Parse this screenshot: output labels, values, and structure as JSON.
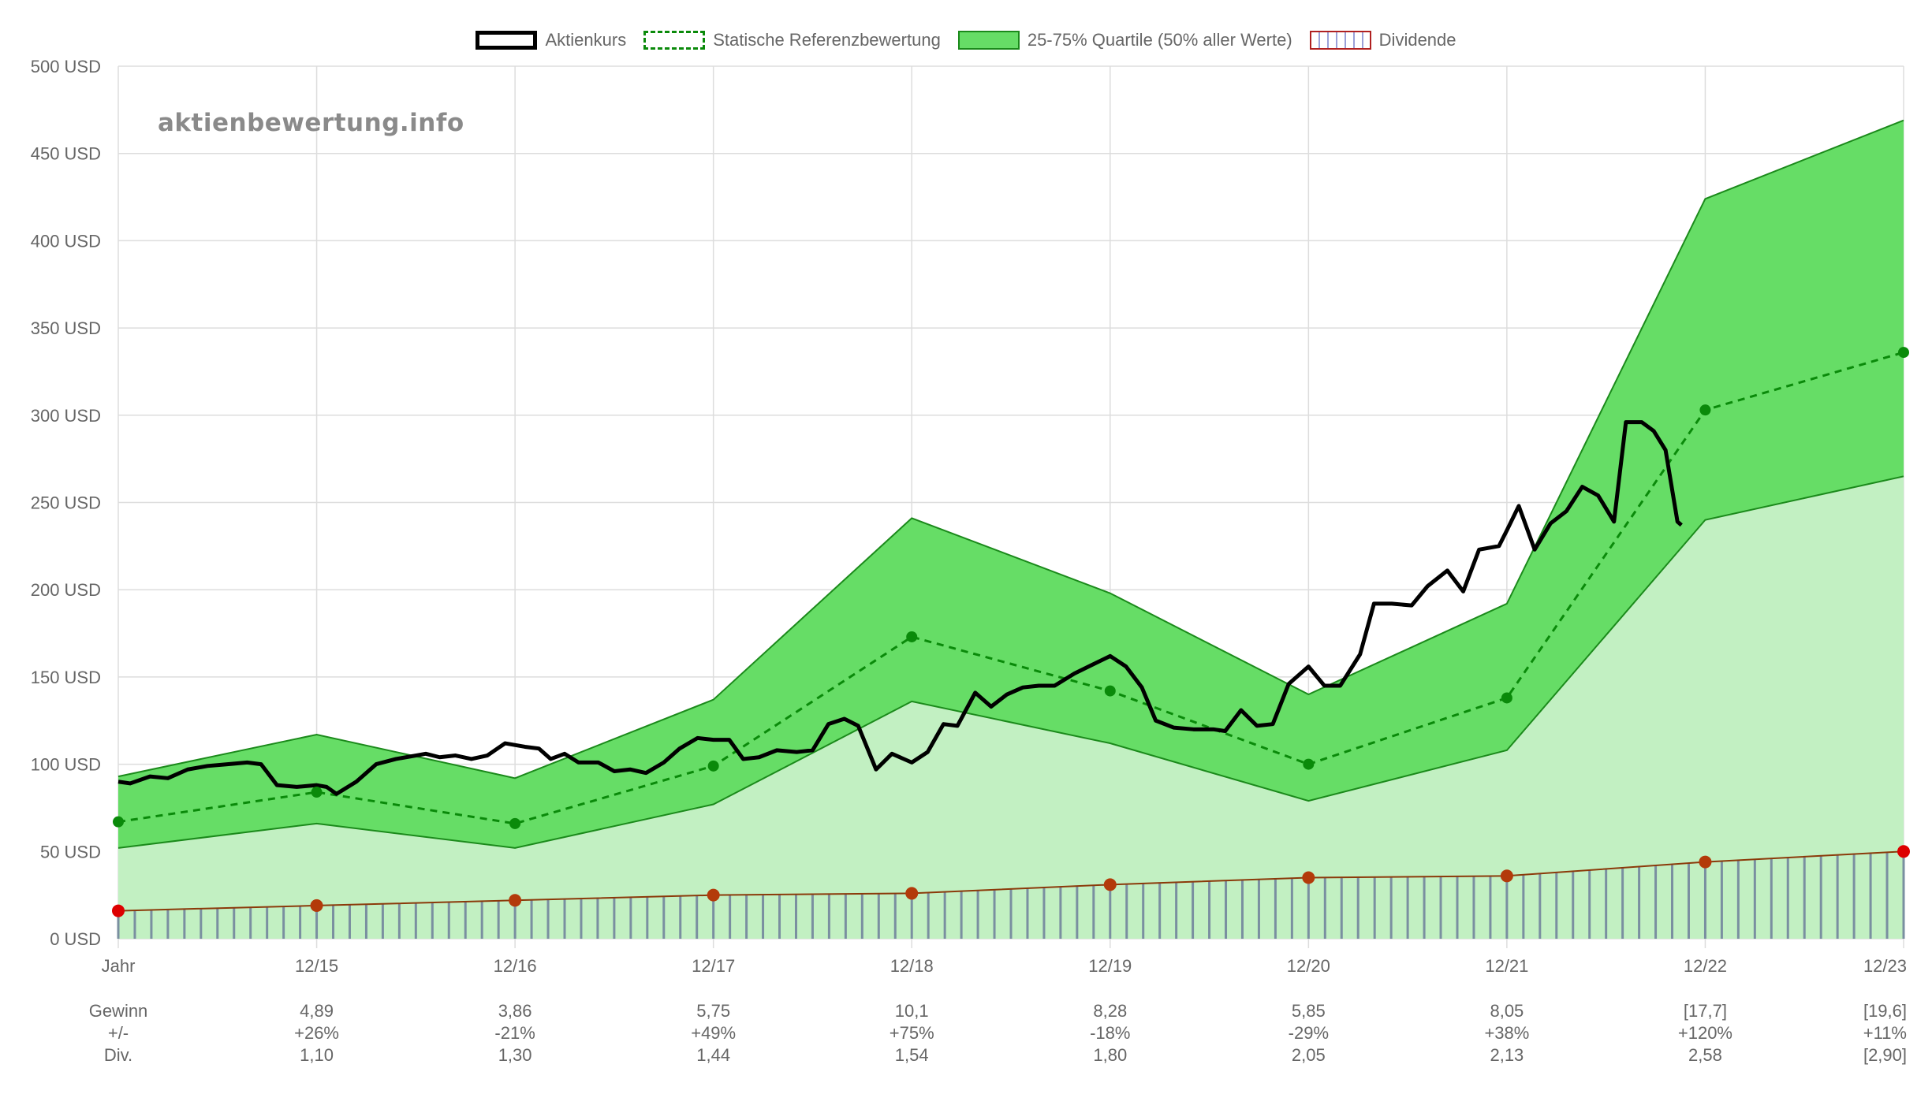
{
  "legend": {
    "price": "Aktienkurs",
    "reference": "Statische Referenzbewertung",
    "quartiles": "25-75% Quartile (50% aller Werte)",
    "dividend": "Dividende"
  },
  "watermark": "aktienbewertung.info",
  "colors": {
    "price": "#000000",
    "reference": "#0a8a0a",
    "quartile_fill": "#66dd66",
    "quartile_line": "#1b8a1b",
    "lower_fill": "#c2f0c2",
    "dividend_line": "#8b3a0a",
    "dividend_dot": "#b33a0a",
    "dividend_end_dot": "#dd0000",
    "grid": "#dddddd"
  },
  "chart_data": {
    "type": "line",
    "y_unit": "USD",
    "ylim": [
      0,
      500
    ],
    "xlim": [
      0,
      9
    ],
    "y_ticks": [
      "0 USD",
      "50 USD",
      "100 USD",
      "150 USD",
      "200 USD",
      "250 USD",
      "300 USD",
      "350 USD",
      "400 USD",
      "450 USD",
      "500 USD"
    ],
    "x_labels": [
      "Jahr",
      "12/15",
      "12/16",
      "12/17",
      "12/18",
      "12/19",
      "12/20",
      "12/21",
      "12/22",
      "12/23"
    ],
    "quartile_upper": [
      93,
      117,
      92,
      137,
      241,
      198,
      140,
      192,
      424,
      469
    ],
    "quartile_lower": [
      52,
      66,
      52,
      77,
      136,
      112,
      79,
      108,
      240,
      265
    ],
    "reference_valuation": [
      67,
      84,
      66,
      99,
      173,
      142,
      100,
      138,
      303,
      336
    ],
    "dividend_line": [
      16,
      19,
      22,
      25,
      26,
      31,
      35,
      36,
      44,
      50
    ],
    "price_series": [
      [
        0.0,
        90
      ],
      [
        0.06,
        89
      ],
      [
        0.16,
        93
      ],
      [
        0.25,
        92
      ],
      [
        0.35,
        97
      ],
      [
        0.45,
        99
      ],
      [
        0.55,
        100
      ],
      [
        0.65,
        101
      ],
      [
        0.72,
        100
      ],
      [
        0.8,
        88
      ],
      [
        0.9,
        87
      ],
      [
        1.0,
        88
      ],
      [
        1.05,
        87
      ],
      [
        1.1,
        83
      ],
      [
        1.2,
        90
      ],
      [
        1.3,
        100
      ],
      [
        1.4,
        103
      ],
      [
        1.5,
        105
      ],
      [
        1.55,
        106
      ],
      [
        1.62,
        104
      ],
      [
        1.7,
        105
      ],
      [
        1.78,
        103
      ],
      [
        1.86,
        105
      ],
      [
        1.95,
        112
      ],
      [
        2.05,
        110
      ],
      [
        2.12,
        109
      ],
      [
        2.18,
        103
      ],
      [
        2.25,
        106
      ],
      [
        2.32,
        101
      ],
      [
        2.42,
        101
      ],
      [
        2.5,
        96
      ],
      [
        2.58,
        97
      ],
      [
        2.66,
        95
      ],
      [
        2.75,
        101
      ],
      [
        2.83,
        109
      ],
      [
        2.92,
        115
      ],
      [
        3.0,
        114
      ],
      [
        3.08,
        114
      ],
      [
        3.15,
        103
      ],
      [
        3.23,
        104
      ],
      [
        3.32,
        108
      ],
      [
        3.42,
        107
      ],
      [
        3.5,
        108
      ],
      [
        3.58,
        123
      ],
      [
        3.66,
        126
      ],
      [
        3.73,
        122
      ],
      [
        3.82,
        97
      ],
      [
        3.9,
        106
      ],
      [
        4.0,
        101
      ],
      [
        4.08,
        107
      ],
      [
        4.16,
        123
      ],
      [
        4.23,
        122
      ],
      [
        4.32,
        141
      ],
      [
        4.4,
        133
      ],
      [
        4.48,
        140
      ],
      [
        4.56,
        144
      ],
      [
        4.64,
        145
      ],
      [
        4.72,
        145
      ],
      [
        4.82,
        152
      ],
      [
        4.91,
        157
      ],
      [
        5.0,
        162
      ],
      [
        5.08,
        156
      ],
      [
        5.16,
        144
      ],
      [
        5.23,
        125
      ],
      [
        5.32,
        121
      ],
      [
        5.42,
        120
      ],
      [
        5.52,
        120
      ],
      [
        5.58,
        119
      ],
      [
        5.66,
        131
      ],
      [
        5.74,
        122
      ],
      [
        5.82,
        123
      ],
      [
        5.9,
        146
      ],
      [
        6.0,
        156
      ],
      [
        6.08,
        145
      ],
      [
        6.16,
        145
      ],
      [
        6.26,
        163
      ],
      [
        6.33,
        192
      ],
      [
        6.42,
        192
      ],
      [
        6.52,
        191
      ],
      [
        6.6,
        202
      ],
      [
        6.7,
        211
      ],
      [
        6.78,
        199
      ],
      [
        6.86,
        223
      ],
      [
        6.96,
        225
      ],
      [
        7.0,
        234
      ],
      [
        7.06,
        248
      ],
      [
        7.14,
        223
      ],
      [
        7.22,
        238
      ],
      [
        7.3,
        245
      ],
      [
        7.38,
        259
      ],
      [
        7.46,
        254
      ],
      [
        7.54,
        239
      ],
      [
        7.6,
        296
      ],
      [
        7.68,
        296
      ],
      [
        7.74,
        291
      ],
      [
        7.8,
        280
      ],
      [
        7.86,
        239
      ],
      [
        7.88,
        237
      ]
    ]
  },
  "fundamentals": {
    "row_labels": [
      "Gewinn",
      "+/-",
      "Div."
    ],
    "columns": [
      {
        "gewinn": "4,89",
        "change": "+26%",
        "div": "1,10"
      },
      {
        "gewinn": "3,86",
        "change": "-21%",
        "div": "1,30"
      },
      {
        "gewinn": "5,75",
        "change": "+49%",
        "div": "1,44"
      },
      {
        "gewinn": "10,1",
        "change": "+75%",
        "div": "1,54"
      },
      {
        "gewinn": "8,28",
        "change": "-18%",
        "div": "1,80"
      },
      {
        "gewinn": "5,85",
        "change": "-29%",
        "div": "2,05"
      },
      {
        "gewinn": "8,05",
        "change": "+38%",
        "div": "2,13"
      },
      {
        "gewinn": "[17,7]",
        "change": "+120%",
        "div": "2,58"
      },
      {
        "gewinn": "[19,6]",
        "change": "+11%",
        "div": "[2,90]"
      }
    ]
  }
}
